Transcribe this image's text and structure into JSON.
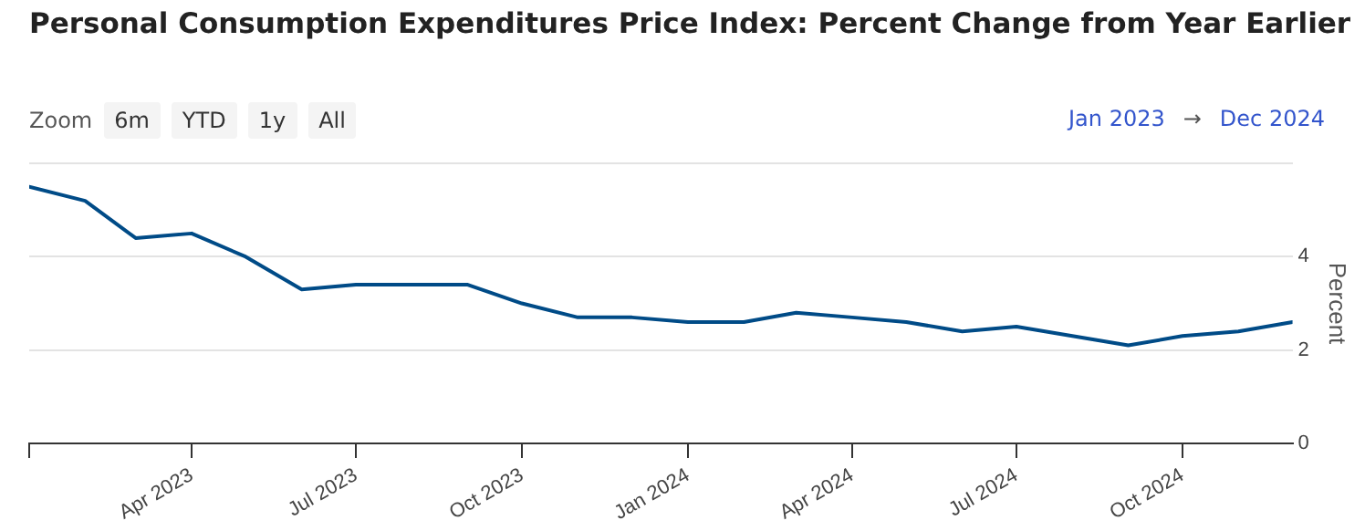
{
  "chart_data": {
    "type": "line",
    "title": "Personal Consumption Expenditures Price Index: Percent Change from Year Earlier",
    "ylabel": "Percent",
    "annotations": [
      "Zoom",
      "6m",
      "YTD",
      "1y",
      "All",
      "Jan 2023",
      "→",
      "Dec 2024"
    ],
    "x": [
      "2023-01",
      "2023-02",
      "2023-03",
      "2023-04",
      "2023-05",
      "2023-06",
      "2023-07",
      "2023-08",
      "2023-09",
      "2023-10",
      "2023-11",
      "2023-12",
      "2024-01",
      "2024-02",
      "2024-03",
      "2024-04",
      "2024-05",
      "2024-06",
      "2024-07",
      "2024-08",
      "2024-09",
      "2024-10",
      "2024-11",
      "2024-12"
    ],
    "series": [
      {
        "color": "#004b87",
        "values": [
          5.5,
          5.2,
          4.4,
          4.5,
          4.0,
          3.3,
          3.4,
          3.4,
          3.4,
          3.0,
          2.7,
          2.7,
          2.6,
          2.6,
          2.8,
          2.7,
          2.6,
          2.4,
          2.5,
          2.3,
          2.1,
          2.3,
          2.4,
          2.6
        ]
      }
    ],
    "xlim": [
      "2023-01",
      "2024-12"
    ],
    "xticks": [
      {
        "value": "2023-01",
        "label": null
      },
      {
        "value": "2023-04",
        "label": "Apr 2023"
      },
      {
        "value": "2023-07",
        "label": "Jul 2023"
      },
      {
        "value": "2023-10",
        "label": "Oct 2023"
      },
      {
        "value": "2024-01",
        "label": "Jan 2024"
      },
      {
        "value": "2024-04",
        "label": "Apr 2024"
      },
      {
        "value": "2024-07",
        "label": "Jul 2024"
      },
      {
        "value": "2024-10",
        "label": "Oct 2024"
      }
    ],
    "ylim": [
      0,
      6
    ],
    "yticks": [
      0,
      2,
      4,
      {
        "value": 6,
        "label": null
      }
    ],
    "grid": "y",
    "legend": false,
    "marker": "none",
    "line_style": "solid"
  }
}
